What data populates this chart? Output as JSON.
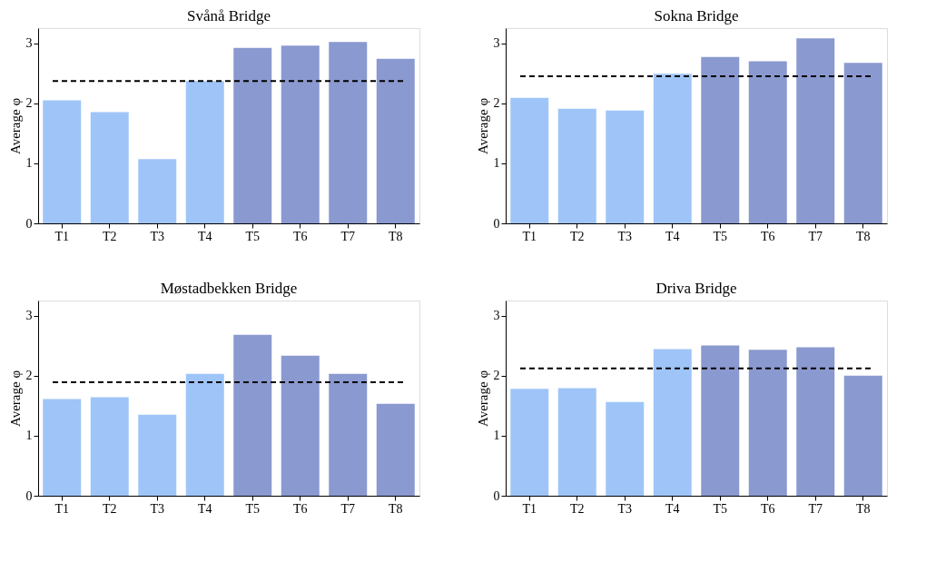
{
  "chart_data": [
    {
      "type": "bar",
      "title": "Svånå Bridge",
      "ylabel": "Average φ",
      "categories": [
        "T1",
        "T2",
        "T3",
        "T4",
        "T5",
        "T6",
        "T7",
        "T8"
      ],
      "values": [
        2.05,
        1.85,
        1.07,
        2.37,
        2.92,
        2.96,
        3.02,
        2.74
      ],
      "colors": [
        "#9fc5f8",
        "#9fc5f8",
        "#9fc5f8",
        "#9fc5f8",
        "#8a99cf",
        "#8a99cf",
        "#8a99cf",
        "#8a99cf"
      ],
      "ylim": [
        0,
        3.25
      ],
      "yticks": [
        0,
        1,
        2,
        3
      ],
      "grid": false,
      "ref_lines": [
        {
          "axis": "y",
          "value": 2.37,
          "color": "#000000",
          "line_style": "dashed"
        }
      ]
    },
    {
      "type": "bar",
      "title": "Sokna Bridge",
      "ylabel": "Average φ",
      "categories": [
        "T1",
        "T2",
        "T3",
        "T4",
        "T5",
        "T6",
        "T7",
        "T8"
      ],
      "values": [
        2.09,
        1.91,
        1.88,
        2.49,
        2.77,
        2.7,
        3.08,
        2.67
      ],
      "colors": [
        "#9fc5f8",
        "#9fc5f8",
        "#9fc5f8",
        "#9fc5f8",
        "#8a99cf",
        "#8a99cf",
        "#8a99cf",
        "#8a99cf"
      ],
      "ylim": [
        0,
        3.25
      ],
      "yticks": [
        0,
        1,
        2,
        3
      ],
      "grid": false,
      "ref_lines": [
        {
          "axis": "y",
          "value": 2.45,
          "color": "#000000",
          "line_style": "dashed"
        }
      ]
    },
    {
      "type": "bar",
      "title": "Møstadbekken Bridge",
      "ylabel": "Average φ",
      "categories": [
        "T1",
        "T2",
        "T3",
        "T4",
        "T5",
        "T6",
        "T7",
        "T8"
      ],
      "values": [
        1.61,
        1.64,
        1.35,
        2.03,
        2.68,
        2.33,
        2.03,
        1.53
      ],
      "colors": [
        "#9fc5f8",
        "#9fc5f8",
        "#9fc5f8",
        "#9fc5f8",
        "#8a99cf",
        "#8a99cf",
        "#8a99cf",
        "#8a99cf"
      ],
      "ylim": [
        0,
        3.25
      ],
      "yticks": [
        0,
        1,
        2,
        3
      ],
      "grid": false,
      "ref_lines": [
        {
          "axis": "y",
          "value": 1.89,
          "color": "#000000",
          "line_style": "dashed"
        }
      ]
    },
    {
      "type": "bar",
      "title": "Driva Bridge",
      "ylabel": "Average φ",
      "categories": [
        "T1",
        "T2",
        "T3",
        "T4",
        "T5",
        "T6",
        "T7",
        "T8"
      ],
      "values": [
        1.78,
        1.79,
        1.56,
        2.44,
        2.5,
        2.43,
        2.47,
        2.0
      ],
      "colors": [
        "#9fc5f8",
        "#9fc5f8",
        "#9fc5f8",
        "#9fc5f8",
        "#8a99cf",
        "#8a99cf",
        "#8a99cf",
        "#8a99cf"
      ],
      "ylim": [
        0,
        3.25
      ],
      "yticks": [
        0,
        1,
        2,
        3
      ],
      "grid": false,
      "ref_lines": [
        {
          "axis": "y",
          "value": 2.12,
          "color": "#000000",
          "line_style": "dashed"
        }
      ]
    }
  ]
}
